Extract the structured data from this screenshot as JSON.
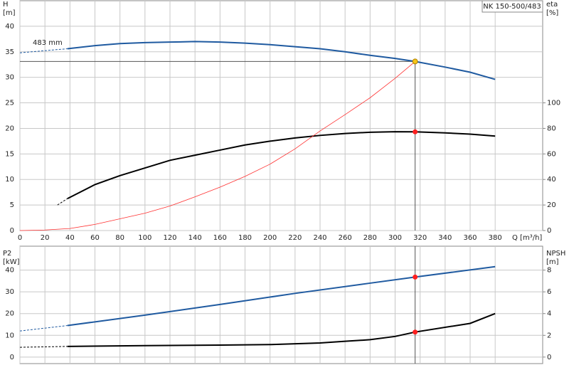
{
  "title": "NK 150-500/483",
  "chart_data": [
    {
      "type": "line",
      "ylabel": [
        "H",
        "[m]"
      ],
      "y2label": [
        "eta",
        "[%]"
      ],
      "xlabel": "Q [m³/h]",
      "annotation": "483 mm",
      "xlim": [
        0,
        418
      ],
      "xticks": [
        0,
        20,
        40,
        60,
        80,
        100,
        120,
        140,
        160,
        180,
        200,
        220,
        240,
        260,
        280,
        300,
        320,
        340,
        360,
        380
      ],
      "ylim": [
        0,
        45
      ],
      "yticks": [
        0,
        5,
        10,
        15,
        20,
        25,
        30,
        35,
        40
      ],
      "y2lim": [
        0,
        180
      ],
      "y2ticks": [
        0,
        20,
        40,
        60,
        80,
        100
      ],
      "series": [
        {
          "color": "#1f5aa0",
          "dash": true,
          "width": 1,
          "axis": "y",
          "x": [
            0,
            38
          ],
          "values": [
            34.8,
            35.6
          ]
        },
        {
          "color": "#1f5aa0",
          "dash": false,
          "width": 2,
          "axis": "y",
          "x": [
            38,
            60,
            80,
            100,
            120,
            140,
            160,
            180,
            200,
            220,
            240,
            260,
            280,
            300,
            316,
            340,
            360,
            380
          ],
          "values": [
            35.6,
            36.2,
            36.6,
            36.8,
            36.9,
            37.0,
            36.9,
            36.7,
            36.4,
            36.0,
            35.6,
            35.0,
            34.3,
            33.7,
            33.1,
            32.0,
            31.0,
            29.6
          ]
        },
        {
          "color": "#000000",
          "dash": true,
          "width": 1,
          "axis": "y2",
          "x": [
            30,
            38
          ],
          "values": [
            20,
            25
          ]
        },
        {
          "color": "#000000",
          "dash": false,
          "width": 2,
          "axis": "y2",
          "x": [
            38,
            60,
            80,
            100,
            120,
            140,
            160,
            180,
            200,
            220,
            240,
            260,
            280,
            300,
            316,
            340,
            360,
            380
          ],
          "values": [
            25,
            36,
            43,
            49,
            55,
            59,
            63,
            67,
            70,
            72.5,
            74.5,
            76,
            77,
            77.4,
            77.3,
            76.5,
            75.5,
            74
          ]
        },
        {
          "color": "#ff3030",
          "dash": false,
          "width": 0.8,
          "axis": "y",
          "x": [
            0,
            20,
            40,
            60,
            80,
            100,
            120,
            140,
            160,
            180,
            200,
            220,
            240,
            260,
            280,
            300,
            316
          ],
          "values": [
            0,
            0.1,
            0.4,
            1.2,
            2.3,
            3.4,
            4.8,
            6.6,
            8.5,
            10.6,
            13,
            16,
            19.5,
            22.7,
            26,
            29.8,
            33.1
          ]
        }
      ],
      "points": [
        {
          "x": 316,
          "value": 33.1,
          "axis": "y",
          "color": "#f5c518"
        },
        {
          "x": 316,
          "value": 77.3,
          "axis": "y2",
          "color": "#ff2020"
        }
      ]
    },
    {
      "type": "line",
      "ylabel": [
        "P2",
        "[kW]"
      ],
      "y2label": [
        "NPSH",
        "[m]"
      ],
      "xlim": [
        0,
        418
      ],
      "xticks": [
        0,
        20,
        40,
        60,
        80,
        100,
        120,
        140,
        160,
        180,
        200,
        220,
        240,
        260,
        280,
        300,
        320,
        340,
        360,
        380
      ],
      "ylim": [
        -3,
        51
      ],
      "yticks": [
        0,
        10,
        20,
        30,
        40
      ],
      "y2lim": [
        -0.6,
        10.2
      ],
      "y2ticks": [
        0,
        2,
        4,
        6,
        8
      ],
      "series": [
        {
          "color": "#1f5aa0",
          "dash": true,
          "width": 1,
          "axis": "y",
          "x": [
            0,
            38
          ],
          "values": [
            12,
            14.5
          ]
        },
        {
          "color": "#1f5aa0",
          "dash": false,
          "width": 2,
          "axis": "y",
          "x": [
            38,
            100,
            160,
            220,
            280,
            316,
            380
          ],
          "values": [
            14.5,
            19.3,
            24.2,
            29.3,
            34,
            36.8,
            41.6
          ]
        },
        {
          "color": "#000000",
          "dash": true,
          "width": 1,
          "axis": "y2",
          "x": [
            0,
            38
          ],
          "values": [
            0.9,
            0.98
          ]
        },
        {
          "color": "#000000",
          "dash": false,
          "width": 2,
          "axis": "y2",
          "x": [
            38,
            100,
            160,
            200,
            240,
            260,
            280,
            300,
            316,
            360,
            380
          ],
          "values": [
            0.98,
            1.05,
            1.1,
            1.15,
            1.3,
            1.45,
            1.6,
            1.9,
            2.3,
            3.1,
            4.0
          ]
        }
      ],
      "points": [
        {
          "x": 316,
          "value": 36.8,
          "axis": "y",
          "color": "#ff2020"
        },
        {
          "x": 316,
          "value": 2.3,
          "axis": "y2",
          "color": "#ff2020"
        }
      ]
    }
  ]
}
